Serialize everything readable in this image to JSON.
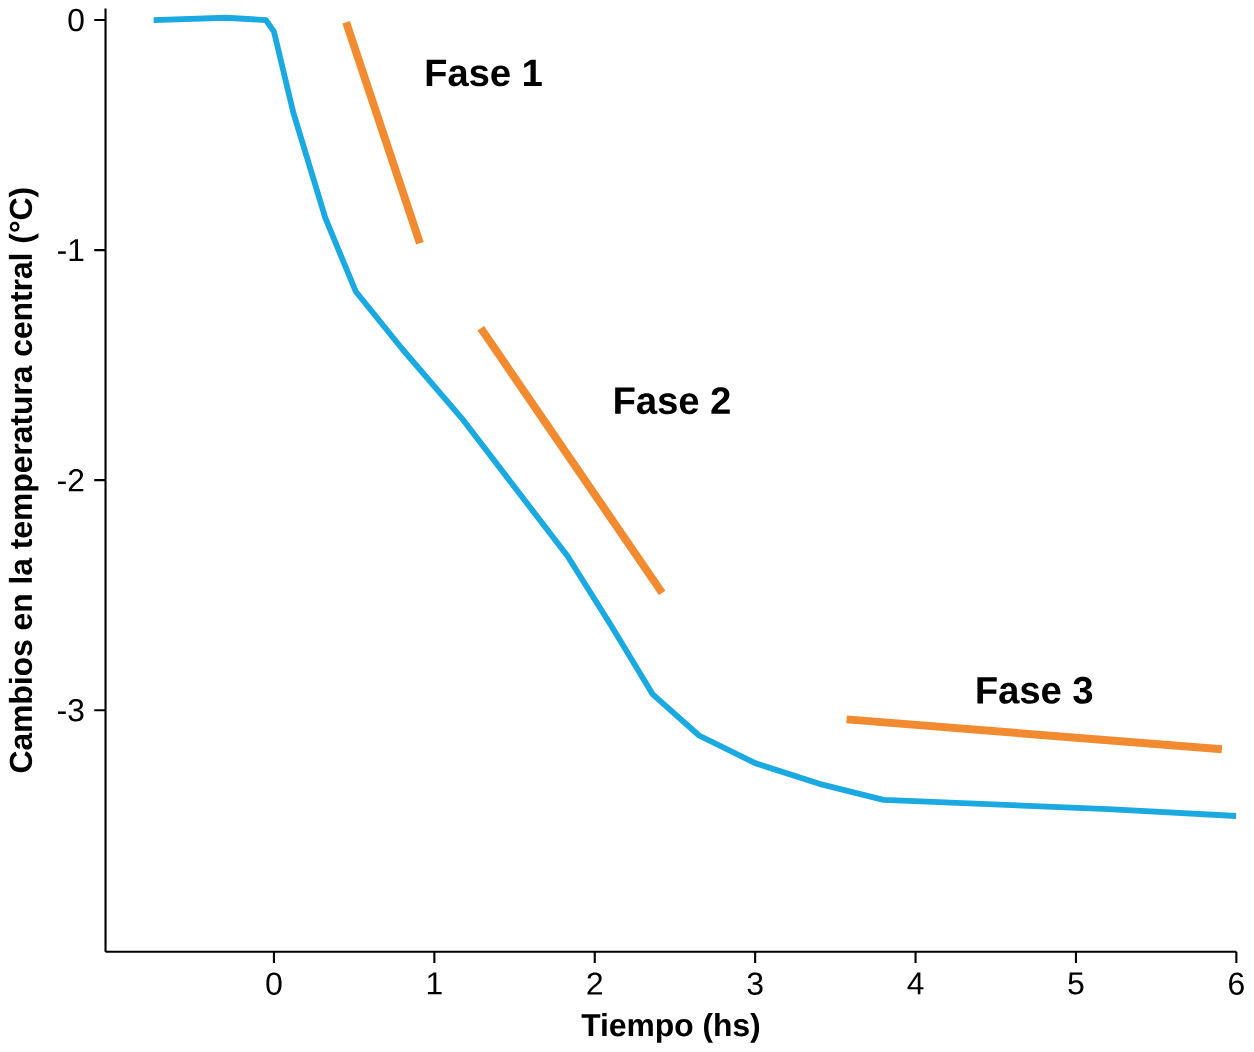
{
  "chart_data": {
    "type": "line",
    "xlabel": "Tiempo (hs)",
    "ylabel": "Cambios en la temperatura central  (°C)",
    "xlim": [
      -1.05,
      6
    ],
    "ylim": [
      -4.05,
      0.05
    ],
    "xticks": [
      0,
      1,
      2,
      3,
      4,
      5,
      6
    ],
    "yticks": [
      -3,
      -2,
      -1,
      0
    ],
    "grid": false,
    "series": [
      {
        "color": "#1ba9e1",
        "x": [
          -0.75,
          -0.3,
          -0.05,
          0,
          0.12,
          0.32,
          0.51,
          0.8,
          1.17,
          1.5,
          1.83,
          2.1,
          2.36,
          2.65,
          3,
          3.4,
          3.8,
          4.5,
          5.2,
          6
        ],
        "values": [
          0,
          0.01,
          0,
          -0.05,
          -0.4,
          -0.86,
          -1.18,
          -1.43,
          -1.73,
          -2.03,
          -2.33,
          -2.63,
          -2.93,
          -3.11,
          -3.23,
          -3.32,
          -3.39,
          -3.41,
          -3.43,
          -3.46
        ]
      },
      {
        "color": "#f28a30",
        "x": [
          0.45,
          0.91
        ],
        "values": [
          -0.01,
          -0.97
        ]
      },
      {
        "color": "#f28a30",
        "x": [
          1.29,
          2.42
        ],
        "values": [
          -1.34,
          -2.49
        ]
      },
      {
        "color": "#f28a30",
        "x": [
          3.57,
          5.91
        ],
        "values": [
          -3.04,
          -3.17
        ]
      }
    ],
    "annotations": [
      "Fase 1",
      "Fase 2",
      "Fase 3"
    ]
  }
}
